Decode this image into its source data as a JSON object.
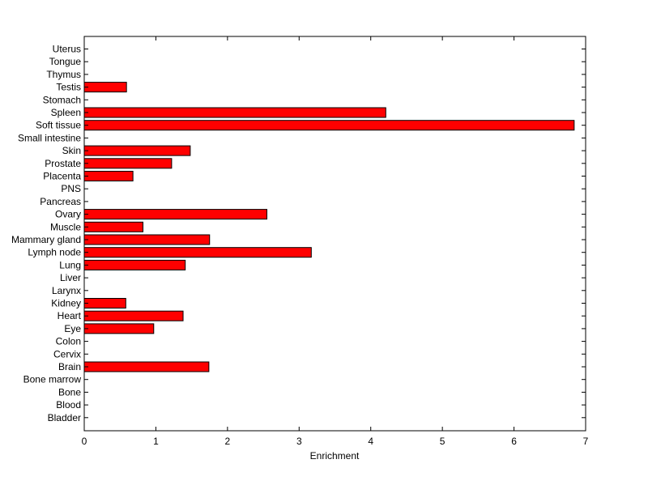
{
  "chart_data": {
    "type": "bar",
    "orientation": "horizontal",
    "title": "",
    "xlabel": "Enrichment",
    "ylabel": "",
    "xlim": [
      0,
      7
    ],
    "xticks": [
      "0",
      "1",
      "2",
      "3",
      "4",
      "5",
      "6",
      "7"
    ],
    "grid": false,
    "legend": "none",
    "bar_color": "#ff0000",
    "bar_edge_color": "#000000",
    "categories": [
      "Uterus",
      "Tongue",
      "Thymus",
      "Testis",
      "Stomach",
      "Spleen",
      "Soft tissue",
      "Small intestine",
      "Skin",
      "Prostate",
      "Placenta",
      "PNS",
      "Pancreas",
      "Ovary",
      "Muscle",
      "Mammary gland",
      "Lymph node",
      "Lung",
      "Liver",
      "Larynx",
      "Kidney",
      "Heart",
      "Eye",
      "Colon",
      "Cervix",
      "Brain",
      "Bone marrow",
      "Bone",
      "Blood",
      "Bladder"
    ],
    "values": [
      0,
      0,
      0,
      0.59,
      0,
      4.21,
      6.84,
      0,
      1.48,
      1.22,
      0.68,
      0,
      0,
      2.55,
      0.82,
      1.75,
      3.17,
      1.41,
      0,
      0,
      0.58,
      1.38,
      0.97,
      0,
      0,
      1.74,
      0,
      0,
      0,
      0
    ]
  }
}
